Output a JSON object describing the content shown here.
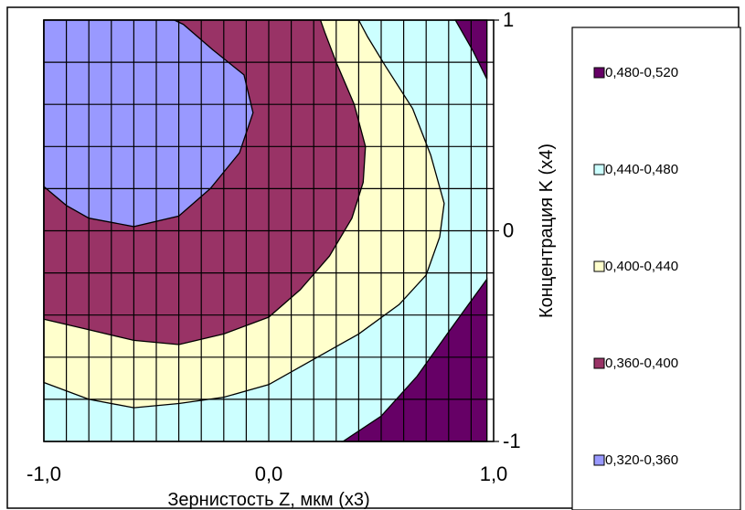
{
  "chart_data": {
    "type": "contour",
    "xlabel": "Зернистость Z, мкм (х3)",
    "ylabel": "Концентрация K (х4)",
    "xlim": [
      -1.0,
      1.0
    ],
    "ylim": [
      -1,
      1
    ],
    "x_ticks": [
      "-1,0",
      "0,0",
      "1,0"
    ],
    "y_ticks": [
      "1",
      "0",
      "-1"
    ],
    "grid": true,
    "legend_position": "right",
    "levels": [
      {
        "name": "0,480-0,520",
        "range": [
          0.48,
          0.52
        ],
        "color": "#660066"
      },
      {
        "name": "0,440-0,480",
        "range": [
          0.44,
          0.48
        ],
        "color": "#ccffff"
      },
      {
        "name": "0,400-0,440",
        "range": [
          0.4,
          0.44
        ],
        "color": "#ffffcc"
      },
      {
        "name": "0,360-0,400",
        "range": [
          0.36,
          0.4
        ],
        "color": "#993366"
      },
      {
        "name": "0,320-0,360",
        "range": [
          0.32,
          0.36
        ],
        "color": "#9999ff"
      }
    ],
    "region_order_bottom_to_top": [
      "0,440-0,480",
      "0,400-0,440",
      "0,360-0,400",
      "0,320-0,360",
      "0,480-0,520"
    ],
    "regions": {
      "0,440-0,480": [
        [
          [
            -1.0,
            -1.0
          ],
          [
            0.97,
            -1.0
          ],
          [
            0.97,
            1.0
          ],
          [
            -1.0,
            1.0
          ]
        ]
      ],
      "0,400-0,440": [
        [
          [
            -1.0,
            -0.72
          ],
          [
            -0.8,
            -0.8
          ],
          [
            -0.6,
            -0.84
          ],
          [
            -0.4,
            -0.82
          ],
          [
            -0.2,
            -0.79
          ],
          [
            0.0,
            -0.73
          ],
          [
            0.2,
            -0.61
          ],
          [
            0.4,
            -0.49
          ],
          [
            0.58,
            -0.35
          ],
          [
            0.7,
            -0.21
          ],
          [
            0.76,
            -0.03
          ],
          [
            0.78,
            0.13
          ],
          [
            0.72,
            0.36
          ],
          [
            0.64,
            0.58
          ],
          [
            0.52,
            0.78
          ],
          [
            0.44,
            0.92
          ],
          [
            0.4,
            1.0
          ],
          [
            -1.0,
            1.0
          ]
        ]
      ],
      "0,360-0,400": [
        [
          [
            -1.0,
            -0.42
          ],
          [
            -0.8,
            -0.47
          ],
          [
            -0.6,
            -0.52
          ],
          [
            -0.4,
            -0.54
          ],
          [
            -0.2,
            -0.49
          ],
          [
            0.0,
            -0.41
          ],
          [
            0.14,
            -0.28
          ],
          [
            0.27,
            -0.12
          ],
          [
            0.37,
            0.06
          ],
          [
            0.42,
            0.23
          ],
          [
            0.43,
            0.4
          ],
          [
            0.38,
            0.6
          ],
          [
            0.3,
            0.8
          ],
          [
            0.25,
            0.94
          ],
          [
            0.23,
            1.0
          ],
          [
            -1.0,
            1.0
          ]
        ]
      ],
      "0,320-0,360": [
        [
          [
            -1.0,
            0.21
          ],
          [
            -0.9,
            0.12
          ],
          [
            -0.8,
            0.06
          ],
          [
            -0.6,
            0.02
          ],
          [
            -0.4,
            0.07
          ],
          [
            -0.26,
            0.2
          ],
          [
            -0.13,
            0.37
          ],
          [
            -0.07,
            0.56
          ],
          [
            -0.11,
            0.74
          ],
          [
            -0.25,
            0.86
          ],
          [
            -0.38,
            0.98
          ],
          [
            -0.42,
            1.0
          ],
          [
            -1.0,
            1.0
          ]
        ]
      ],
      "0,480-0,520": [
        [
          [
            0.83,
            1.0
          ],
          [
            0.91,
            0.85
          ],
          [
            0.97,
            0.72
          ],
          [
            0.97,
            1.0
          ]
        ],
        [
          [
            0.33,
            -1.0
          ],
          [
            0.5,
            -0.88
          ],
          [
            0.66,
            -0.69
          ],
          [
            0.8,
            -0.48
          ],
          [
            0.97,
            -0.23
          ],
          [
            0.97,
            -1.0
          ]
        ]
      ]
    }
  }
}
